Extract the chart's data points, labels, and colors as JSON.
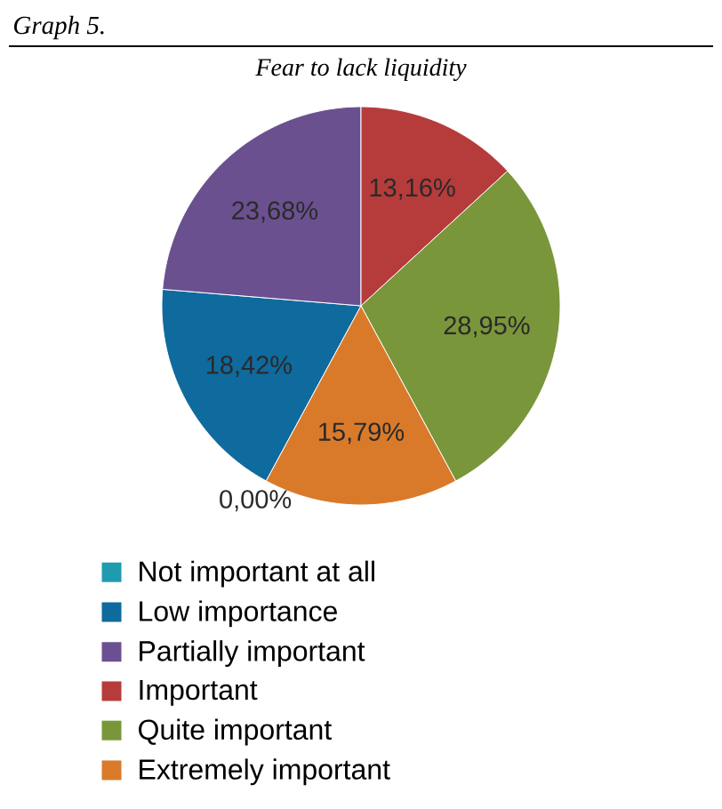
{
  "chart_data": {
    "type": "pie",
    "title": "Fear to lack liquidity",
    "annotations": [
      "Graph 5."
    ],
    "categories": [
      "Not important at all",
      "Low importance",
      "Partially important",
      "Important",
      "Quite important",
      "Extremely important"
    ],
    "values": [
      0,
      18.42,
      23.68,
      13.16,
      28.95,
      15.79
    ],
    "value_labels": [
      "0,00%",
      "18,42%",
      "23,68%",
      "13,16%",
      "28,95%",
      "15,79%"
    ],
    "colors": [
      "#1f9bb0",
      "#0f6a9e",
      "#6b5090",
      "#b63c3c",
      "#7a963a",
      "#d97a2a"
    ],
    "legend": "bottom"
  }
}
